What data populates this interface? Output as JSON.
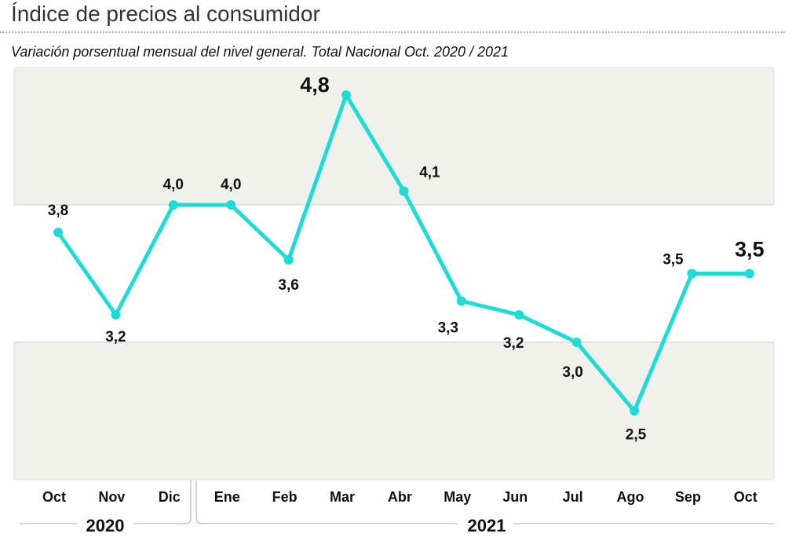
{
  "chart_data": {
    "type": "line",
    "title": "Índice de precios al consumidor",
    "subtitle": "Variación porsentual mensual del nivel general. Total Nacional Oct. 2020 / 2021",
    "categories": [
      "Oct",
      "Nov",
      "Dic",
      "Ene",
      "Feb",
      "Mar",
      "Abr",
      "May",
      "Jun",
      "Jul",
      "Ago",
      "Sep",
      "Oct"
    ],
    "values": [
      3.8,
      3.2,
      4.0,
      4.0,
      3.6,
      4.8,
      4.1,
      3.3,
      3.2,
      3.0,
      2.5,
      3.5,
      3.5
    ],
    "data_labels": [
      "3,8",
      "3,2",
      "4,0",
      "4,0",
      "3,6",
      "4,8",
      "4,1",
      "3,3",
      "3,2",
      "3,0",
      "2,5",
      "3,5",
      "3,5"
    ],
    "year_groups": [
      {
        "label": "2020",
        "from": 0,
        "to": 2
      },
      {
        "label": "2021",
        "from": 3,
        "to": 12
      }
    ],
    "ylim": [
      2,
      5
    ],
    "bands": [
      [
        2,
        3
      ],
      [
        4,
        5
      ]
    ],
    "grid": false,
    "colors": {
      "line": "#1ddcd8",
      "band": "#f1f1ec"
    }
  }
}
